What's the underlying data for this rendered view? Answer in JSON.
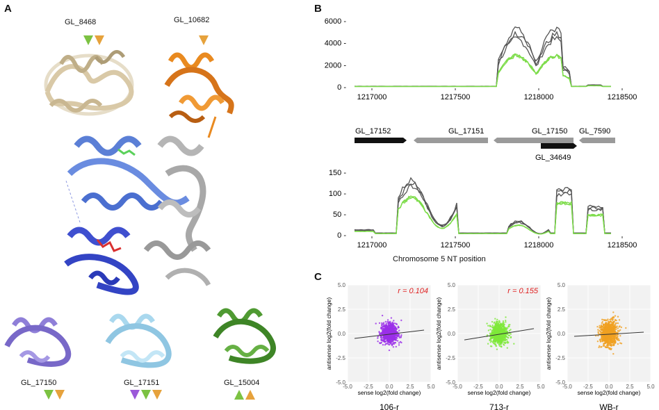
{
  "panels": {
    "A": "A",
    "B": "B",
    "C": "C"
  },
  "panelA": {
    "proteins": [
      {
        "label": "GL_8468",
        "color": "#d9c9a7",
        "markers": [
          {
            "dir": "down",
            "color": "#7cc242"
          },
          {
            "dir": "down",
            "color": "#e6a23c"
          }
        ]
      },
      {
        "label": "GL_10682",
        "color": "#e98a20",
        "markers": [
          {
            "dir": "down",
            "color": "#e6a23c"
          }
        ]
      },
      {
        "label": "GL_17150",
        "color": "#8f7fd8",
        "markers": [
          {
            "dir": "down",
            "color": "#7cc242"
          },
          {
            "dir": "down",
            "color": "#e6a23c"
          }
        ]
      },
      {
        "label": "GL_17151",
        "color": "#a9d8ee",
        "markers": [
          {
            "dir": "down",
            "color": "#9b59d9"
          },
          {
            "dir": "down",
            "color": "#7cc242"
          },
          {
            "dir": "down",
            "color": "#e6a23c"
          }
        ]
      },
      {
        "label": "GL_15004",
        "color": "#4f9a32",
        "markers": [
          {
            "dir": "up",
            "color": "#7cc242"
          },
          {
            "dir": "up",
            "color": "#e6a23c"
          }
        ]
      }
    ],
    "complex_colors": [
      "#5b7fd6",
      "#3f4fcf",
      "#b5b5b5",
      "#d93030",
      "#5bd15b"
    ]
  },
  "panelB": {
    "top_chart": {
      "yticks": [
        "6000 -",
        "4000 -",
        "2000 -",
        "0 -"
      ],
      "xticks": [
        "1217000",
        "1217500",
        "1218000",
        "1218500"
      ]
    },
    "genes": {
      "labels": [
        "GL_17152",
        "GL_17151",
        "GL_17150",
        "GL_7590",
        "GL_34649"
      ],
      "colors": {
        "sense": "#111111",
        "other": "#9a9a9a"
      }
    },
    "bottom_chart": {
      "yticks": [
        "150 -",
        "100 -",
        "50 -",
        "0 -"
      ],
      "xticks": [
        "1217000",
        "1217500",
        "1218000",
        "1218500"
      ],
      "xlabel": "Chromosome 5 NT position"
    },
    "series_colors": {
      "dark": "#555555",
      "green": "#7ddc4a"
    }
  },
  "panelC": {
    "scatters": [
      {
        "title": "106-r",
        "r": "r = 0.104",
        "color": "#9b30e8"
      },
      {
        "title": "713-r",
        "r": "r = 0.155",
        "color": "#7ee83a"
      },
      {
        "title": "WB-r",
        "r": "",
        "color": "#f0a020"
      }
    ],
    "ylabel": "antisense log2(fold change)",
    "xlabel": "sense log2(fold change)",
    "yticks": [
      "5.0",
      "2.5",
      "0.0",
      "-2.5",
      "-5.0"
    ],
    "xticks": [
      "-5.0",
      "-2.5",
      "0.0",
      "2.5",
      "5.0"
    ],
    "r_color": "#e02020"
  }
}
